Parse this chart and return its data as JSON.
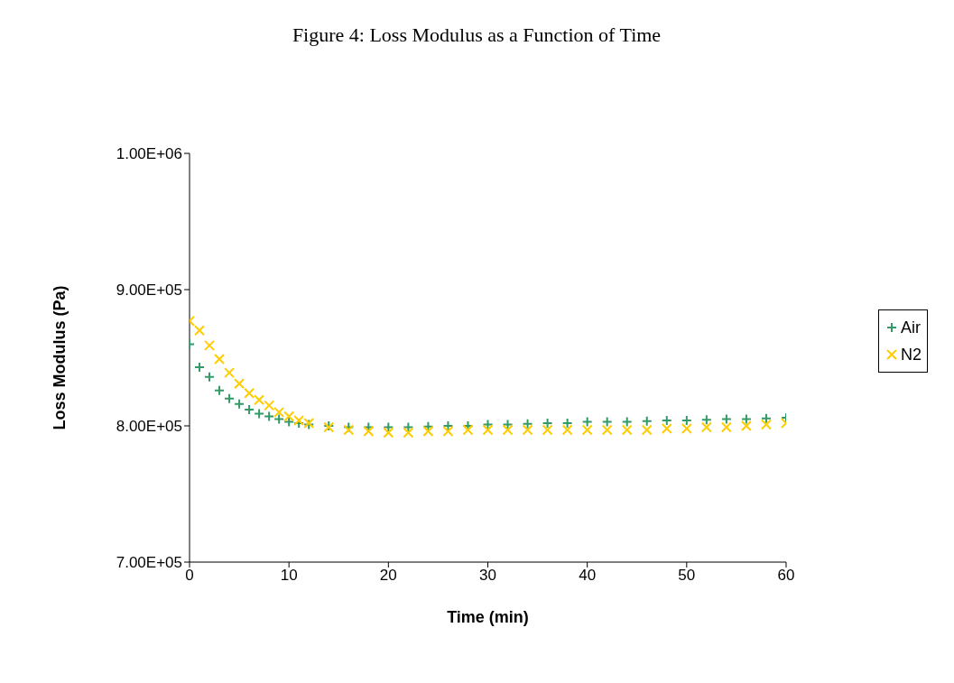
{
  "chart_data": {
    "type": "scatter",
    "title": "Figure 4: Loss Modulus as a Function of Time",
    "xlabel": "Time (min)",
    "ylabel": "Loss Modulus (Pa)",
    "xlim": [
      0,
      60
    ],
    "xticks": [
      0,
      10,
      20,
      30,
      40,
      50,
      60
    ],
    "ylim": [
      700000,
      1000000
    ],
    "yticks": [
      {
        "value": 700000,
        "label": "7.00E+05"
      },
      {
        "value": 800000,
        "label": "8.00E+05"
      },
      {
        "value": 900000,
        "label": "9.00E+05"
      },
      {
        "value": 1000000,
        "label": "1.00E+06"
      }
    ],
    "grid": false,
    "legend": "right",
    "x": [
      0,
      1,
      2,
      3,
      4,
      5,
      6,
      7,
      8,
      9,
      10,
      11,
      12,
      14,
      16,
      18,
      20,
      22,
      24,
      26,
      28,
      30,
      32,
      34,
      36,
      38,
      40,
      42,
      44,
      46,
      48,
      50,
      52,
      54,
      56,
      58,
      60
    ],
    "series": [
      {
        "name": "Air",
        "color": "#339966",
        "marker": "plus",
        "values": [
          860000,
          843000,
          836000,
          826000,
          820000,
          816000,
          812000,
          809000,
          807000,
          805000,
          803000,
          802000,
          801000,
          800000,
          799000,
          799000,
          799000,
          799000,
          799500,
          800000,
          800000,
          801000,
          801000,
          801500,
          802000,
          802000,
          803000,
          803000,
          803000,
          803500,
          804000,
          804000,
          804500,
          805000,
          805000,
          805500,
          806000
        ]
      },
      {
        "name": "N2",
        "color": "#ffcc00",
        "marker": "cross",
        "values": [
          877000,
          870000,
          859000,
          849000,
          839000,
          831000,
          824000,
          819000,
          815000,
          810000,
          807000,
          804000,
          802000,
          799000,
          797000,
          796000,
          795000,
          795000,
          796000,
          796000,
          797000,
          797000,
          797000,
          797000,
          797000,
          797000,
          797000,
          797000,
          797000,
          797000,
          798000,
          798000,
          799000,
          799000,
          800000,
          801000,
          802000
        ]
      }
    ]
  }
}
